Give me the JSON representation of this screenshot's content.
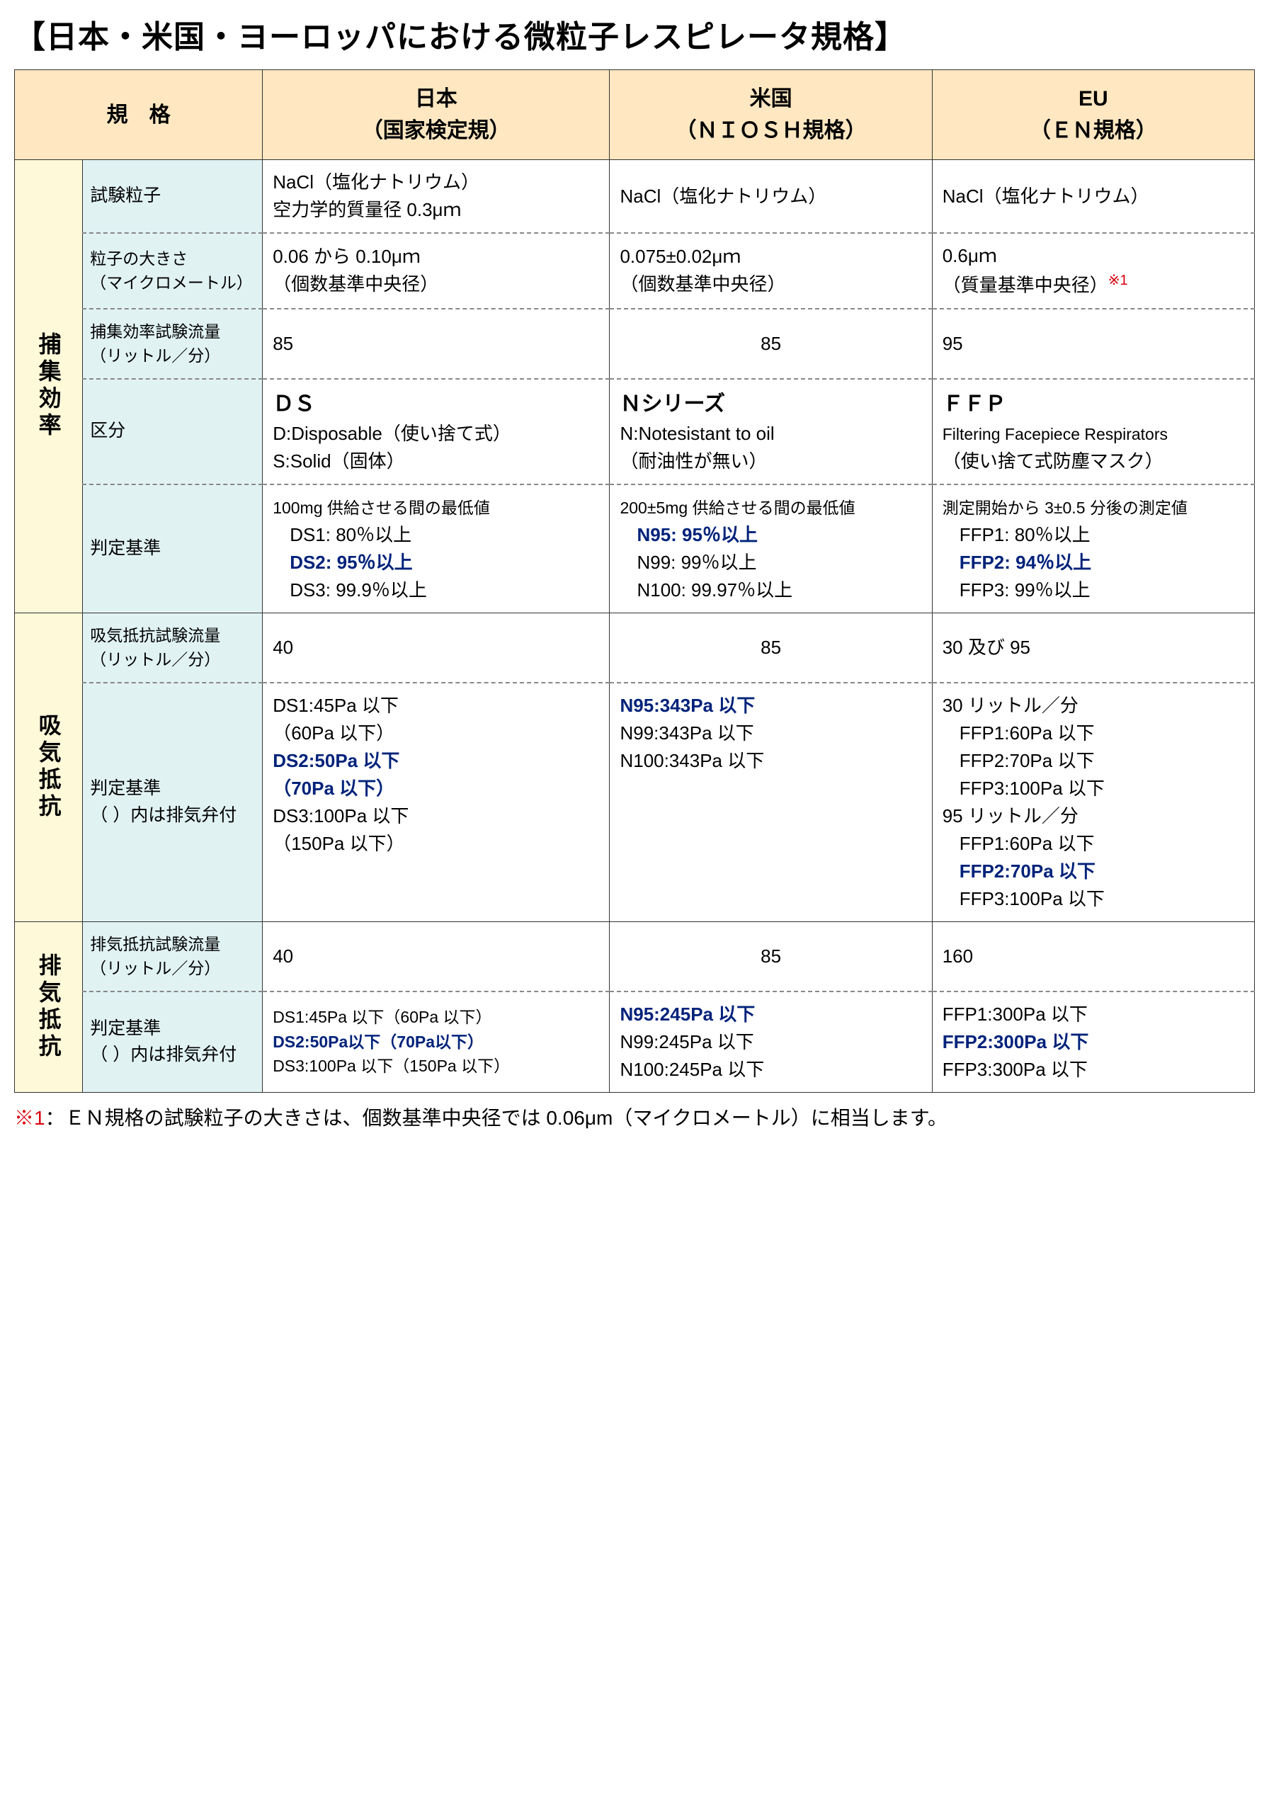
{
  "title": "【日本・米国・ヨーロッパにおける微粒子レスピレータ規格】",
  "header": {
    "spec": "規　格",
    "jp": "日本\n（国家検定規）",
    "us": "米国\n（ＮＩＯＳＨ規格）",
    "eu": "EU\n（ＥＮ規格）"
  },
  "groups": {
    "capture": "捕集効率",
    "inhale": "吸気抵抗",
    "exhale": "排気抵抗"
  },
  "rows": {
    "particle": {
      "label": "試験粒子",
      "jp": "NaCl（塩化ナトリウム）\n空力学的質量径 0.3μｍ",
      "us": "NaCl（塩化ナトリウム）",
      "eu": "NaCl（塩化ナトリウム）"
    },
    "size": {
      "label": "粒子の大きさ\n（マイクロメートル）",
      "jp": "0.06 から 0.10μｍ\n（個数基準中央径）",
      "us": "0.075±0.02μｍ\n（個数基準中央径）",
      "eu_a": "0.6μｍ",
      "eu_b": "（質量基準中央径）",
      "eu_note": "※1"
    },
    "flow": {
      "label": "捕集効率試験流量\n（リットル／分）",
      "jp": "85",
      "us": "85",
      "eu": "95"
    },
    "class": {
      "label": "区分",
      "jp_h": "ＤＳ",
      "jp_1": "D:Disposable（使い捨て式）",
      "jp_2": "S:Solid（固体）",
      "us_h": "Ｎシリーズ",
      "us_1": "N:Notesistant to oil",
      "us_2": "（耐油性が無い）",
      "eu_h": "ＦＦＰ",
      "eu_1": "Filtering Facepiece Respirators",
      "eu_2": "（使い捨て式防塵マスク）"
    },
    "criteria": {
      "label": "判定基準",
      "jp_h": "100mg 供給させる間の最低値",
      "jp_1": "DS1: 80％以上",
      "jp_2": "DS2: 95％以上",
      "jp_3": "DS3: 99.9％以上",
      "us_h": "200±5mg 供給させる間の最低値",
      "us_1": "N95: 95％以上",
      "us_2": "N99: 99％以上",
      "us_3": "N100: 99.97％以上",
      "eu_h": "測定開始から 3±0.5 分後の測定値",
      "eu_1": "FFP1: 80％以上",
      "eu_2": "FFP2: 94％以上",
      "eu_3": "FFP3: 99％以上"
    },
    "inhale_flow": {
      "label": "吸気抵抗試験流量\n（リットル／分）",
      "jp": "40",
      "us": "85",
      "eu": "30 及び 95"
    },
    "inhale_crit": {
      "label": "判定基準\n（ ）内は排気弁付",
      "jp_1": "DS1:45Pa 以下",
      "jp_1b": "（60Pa 以下）",
      "jp_2": "DS2:50Pa 以下",
      "jp_2b": "（70Pa 以下）",
      "jp_3": "DS3:100Pa 以下",
      "jp_3b": "（150Pa 以下）",
      "us_1": "N95:343Pa 以下",
      "us_2": "N99:343Pa 以下",
      "us_3": "N100:343Pa 以下",
      "eu_h1": "30 リットル／分",
      "eu_a1": "FFP1:60Pa 以下",
      "eu_a2": "FFP2:70Pa 以下",
      "eu_a3": "FFP3:100Pa 以下",
      "eu_h2": "95 リットル／分",
      "eu_b1": "FFP1:60Pa 以下",
      "eu_b2": "FFP2:70Pa 以下",
      "eu_b3": "FFP3:100Pa 以下"
    },
    "exhale_flow": {
      "label": "排気抵抗試験流量\n（リットル／分）",
      "jp": "40",
      "us": "85",
      "eu": "160"
    },
    "exhale_crit": {
      "label": "判定基準\n（ ）内は排気弁付",
      "jp_1": "DS1:45Pa 以下（60Pa 以下）",
      "jp_2": "DS2:50Pa以下（70Pa以下）",
      "jp_3": "DS3:100Pa 以下（150Pa 以下）",
      "us_1": "N95:245Pa 以下",
      "us_2": "N99:245Pa 以下",
      "us_3": "N100:245Pa 以下",
      "eu_1": "FFP1:300Pa 以下",
      "eu_2": "FFP2:300Pa 以下",
      "eu_3": "FFP3:300Pa 以下"
    }
  },
  "footnote": {
    "label": "※1",
    "text": "：ＥＮ規格の試験粒子の大きさは、個数基準中央径では 0.06μm（マイクロメートル）に相当します。"
  },
  "colors": {
    "header_bg": "#fee7c1",
    "vcat_bg": "#fdf9d9",
    "subcat_bg": "#e1f2f3",
    "emph": "#00227a",
    "red": "#d8000c"
  }
}
